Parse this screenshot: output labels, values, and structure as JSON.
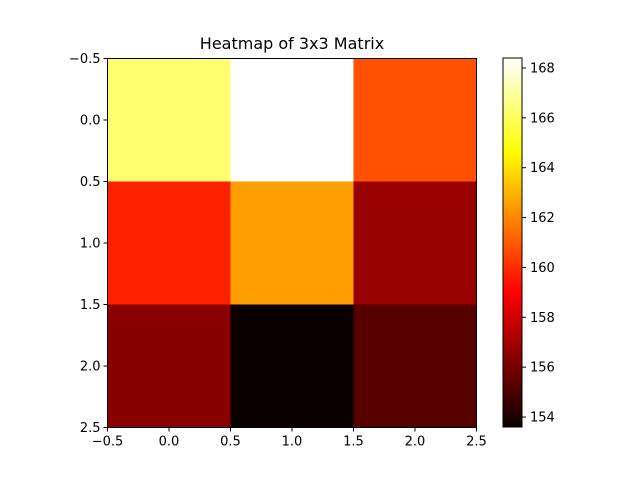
{
  "chart_data": {
    "type": "heatmap",
    "title": "Heatmap of 3x3 Matrix",
    "xlabel": "",
    "ylabel": "",
    "colormap": "hot",
    "xlim": [
      -0.5,
      2.5
    ],
    "ylim": [
      2.5,
      -0.5
    ],
    "x_ticks": [
      -0.5,
      0.0,
      0.5,
      1.0,
      1.5,
      2.0,
      2.5
    ],
    "x_tick_labels": [
      "−0.5",
      "0.0",
      "0.5",
      "1.0",
      "1.5",
      "2.0",
      "2.5"
    ],
    "y_ticks": [
      -0.5,
      0.0,
      0.5,
      1.0,
      1.5,
      2.0,
      2.5
    ],
    "y_tick_labels": [
      "−0.5",
      "0.0",
      "0.5",
      "1.0",
      "1.5",
      "2.0",
      "2.5"
    ],
    "matrix": [
      [
        166.3,
        168.4,
        160.8
      ],
      [
        159.7,
        162.5,
        156.6
      ],
      [
        156.3,
        153.6,
        155.2
      ]
    ],
    "colorbar": {
      "vmin": 153.6,
      "vmax": 168.4,
      "ticks": [
        154,
        156,
        158,
        160,
        162,
        164,
        166,
        168
      ],
      "tick_labels": [
        "154",
        "156",
        "158",
        "160",
        "162",
        "164",
        "166",
        "168"
      ]
    },
    "grid": false,
    "legend": "none"
  }
}
